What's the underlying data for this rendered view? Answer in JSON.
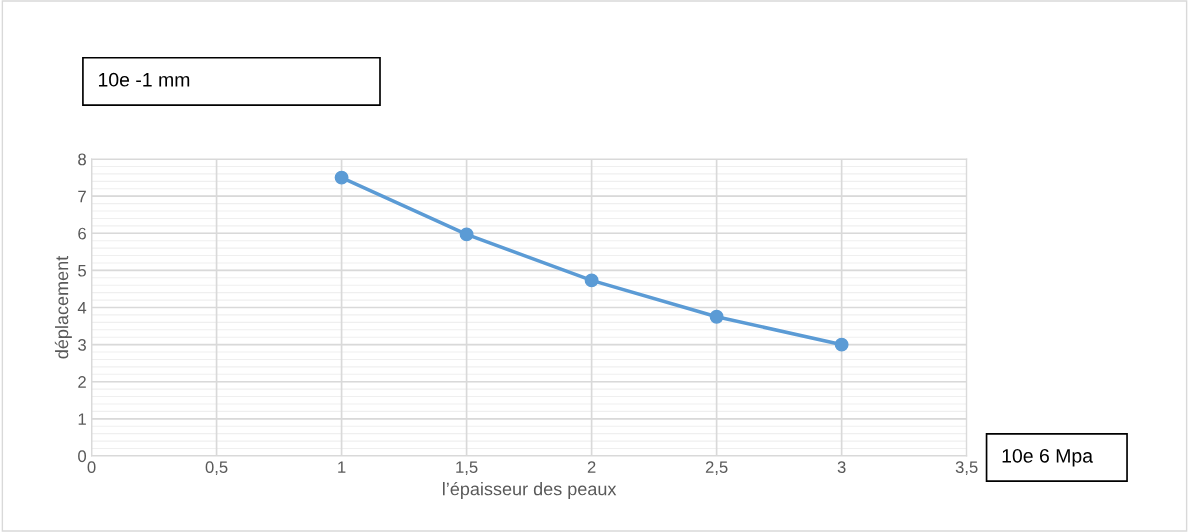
{
  "chart_data": {
    "type": "line",
    "xlabel": "l’épaisseur des peaux",
    "ylabel": "déplacement",
    "x": [
      1,
      1.5,
      2,
      2.5,
      3
    ],
    "series": [
      {
        "color": "#5b9bd5",
        "values": [
          7.5,
          5.97,
          4.73,
          3.75,
          3.0
        ]
      }
    ],
    "xlim": [
      0,
      3.5
    ],
    "xticks": [
      0,
      {
        "value": 0.5,
        "label": "0,5"
      },
      1,
      {
        "value": 1.5,
        "label": "1,5"
      },
      2,
      {
        "value": 2.5,
        "label": "2,5"
      },
      3,
      {
        "value": 3.5,
        "label": "3,5"
      }
    ],
    "ylim": [
      0,
      8
    ],
    "yticks": [
      0,
      1,
      2,
      3,
      4,
      5,
      6,
      7,
      8
    ],
    "grid": true,
    "marker": "circle",
    "line_style": "solid",
    "annotations": [
      "10e -1 mm",
      "10e 6 Mpa"
    ]
  }
}
